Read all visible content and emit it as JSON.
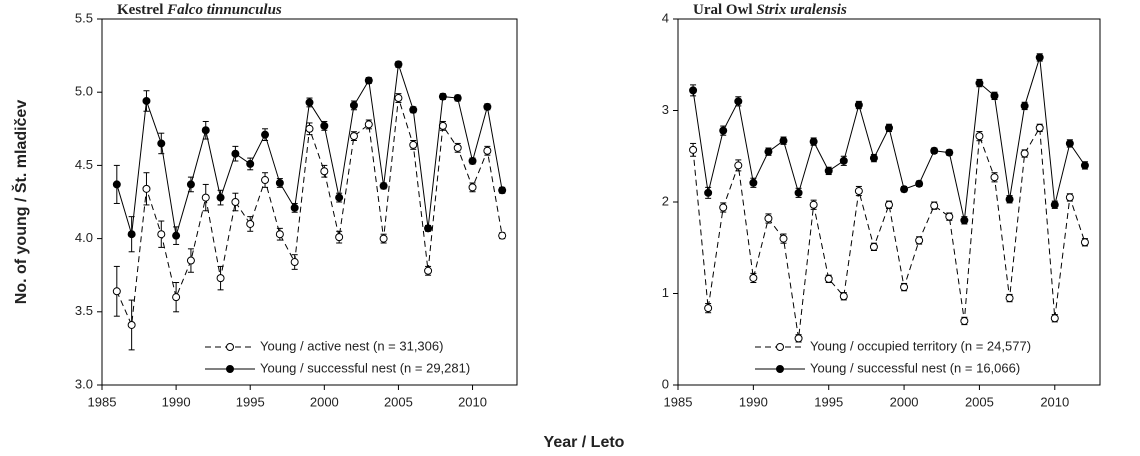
{
  "shared_y_label": "No. of young / Št. mladičev",
  "shared_x_label": "Year / Leto",
  "chart_data": [
    {
      "type": "line",
      "title": "Kestrel",
      "title_italic": "Falco tinnunculus",
      "x": [
        1986,
        1987,
        1988,
        1989,
        1990,
        1991,
        1992,
        1993,
        1994,
        1995,
        1996,
        1997,
        1998,
        1999,
        2000,
        2001,
        2002,
        2003,
        2004,
        2005,
        2006,
        2007,
        2008,
        2009,
        2010,
        2011,
        2012
      ],
      "xlim": [
        1985,
        2013
      ],
      "xticks": [
        1985,
        1990,
        1995,
        2000,
        2005,
        2010
      ],
      "ylim": [
        3,
        5.5
      ],
      "yticks": [
        {
          "value": 3,
          "label": "3.0"
        },
        3.5,
        {
          "value": 4,
          "label": "4.0"
        },
        4.5,
        {
          "value": 5,
          "label": "5.0"
        },
        5.5
      ],
      "grid": false,
      "legend": "lower-center",
      "series": [
        {
          "name": "Young / active nest (n = 31,306)",
          "color": "#000000",
          "marker": "open",
          "dashed": true,
          "values": [
            3.64,
            3.41,
            4.34,
            4.03,
            3.6,
            3.85,
            4.28,
            3.73,
            4.25,
            4.1,
            4.4,
            4.03,
            3.84,
            4.75,
            4.46,
            4.01,
            4.7,
            4.78,
            4.0,
            4.96,
            4.64,
            3.78,
            4.77,
            4.62,
            4.35,
            4.6,
            4.02
          ],
          "errors": [
            0.17,
            0.17,
            0.11,
            0.09,
            0.1,
            0.08,
            0.09,
            0.08,
            0.06,
            0.05,
            0.05,
            0.04,
            0.05,
            0.04,
            0.04,
            0.04,
            0.03,
            0.03,
            0.03,
            0.03,
            0.03,
            0.03,
            0.03,
            0.03,
            0.03,
            0.03,
            0.02
          ]
        },
        {
          "name": "Young / successful nest (n = 29,281)",
          "color": "#000000",
          "marker": "filled",
          "dashed": false,
          "values": [
            4.37,
            4.03,
            4.94,
            4.65,
            4.02,
            4.37,
            4.74,
            4.28,
            4.58,
            4.51,
            4.71,
            4.38,
            4.21,
            4.93,
            4.77,
            4.28,
            4.91,
            5.08,
            4.36,
            5.19,
            4.88,
            4.07,
            4.97,
            4.96,
            4.53,
            4.9,
            4.33
          ],
          "errors": [
            0.13,
            0.12,
            0.07,
            0.07,
            0.06,
            0.05,
            0.06,
            0.05,
            0.05,
            0.04,
            0.04,
            0.03,
            0.03,
            0.03,
            0.03,
            0.03,
            0.03,
            0.02,
            0.02,
            0.02,
            0.02,
            0.02,
            0.02,
            0.02,
            0.02,
            0.02,
            0.02
          ]
        }
      ]
    },
    {
      "type": "line",
      "title": "Ural Owl",
      "title_italic": "Strix uralensis",
      "x": [
        1986,
        1987,
        1988,
        1989,
        1990,
        1991,
        1992,
        1993,
        1994,
        1995,
        1996,
        1997,
        1998,
        1999,
        2000,
        2001,
        2002,
        2003,
        2004,
        2005,
        2006,
        2007,
        2008,
        2009,
        2010,
        2011,
        2012
      ],
      "xlim": [
        1985,
        2013
      ],
      "xticks": [
        1985,
        1990,
        1995,
        2000,
        2005,
        2010
      ],
      "ylim": [
        0,
        4
      ],
      "yticks": [
        0,
        1,
        2,
        3,
        4
      ],
      "grid": false,
      "legend": "lower-right",
      "series": [
        {
          "name": "Young / occupied territory (n = 24,577)",
          "color": "#000000",
          "marker": "open",
          "dashed": true,
          "values": [
            2.57,
            0.84,
            1.94,
            2.4,
            1.17,
            1.82,
            1.6,
            0.51,
            1.97,
            1.16,
            0.97,
            2.12,
            1.51,
            1.97,
            1.07,
            1.58,
            1.96,
            1.84,
            0.7,
            2.72,
            2.27,
            0.95,
            2.53,
            2.81,
            0.73,
            2.05,
            1.56
          ],
          "errors": [
            0.07,
            0.05,
            0.05,
            0.06,
            0.05,
            0.05,
            0.05,
            0.04,
            0.05,
            0.04,
            0.04,
            0.05,
            0.04,
            0.04,
            0.04,
            0.04,
            0.04,
            0.04,
            0.04,
            0.05,
            0.05,
            0.04,
            0.04,
            0.04,
            0.04,
            0.04,
            0.04
          ]
        },
        {
          "name": "Young / successful nest (n = 16,066)",
          "color": "#000000",
          "marker": "filled",
          "dashed": false,
          "values": [
            3.22,
            2.1,
            2.78,
            3.1,
            2.21,
            2.55,
            2.67,
            2.1,
            2.66,
            2.34,
            2.45,
            3.06,
            2.48,
            2.81,
            2.14,
            2.2,
            2.56,
            2.54,
            1.8,
            3.3,
            3.16,
            2.03,
            3.05,
            3.58,
            1.97,
            2.64,
            2.4
          ],
          "errors": [
            0.06,
            0.06,
            0.05,
            0.05,
            0.05,
            0.04,
            0.04,
            0.05,
            0.04,
            0.04,
            0.05,
            0.04,
            0.04,
            0.04,
            0.03,
            0.03,
            0.03,
            0.03,
            0.04,
            0.04,
            0.04,
            0.04,
            0.04,
            0.04,
            0.04,
            0.04,
            0.04
          ]
        }
      ]
    }
  ]
}
